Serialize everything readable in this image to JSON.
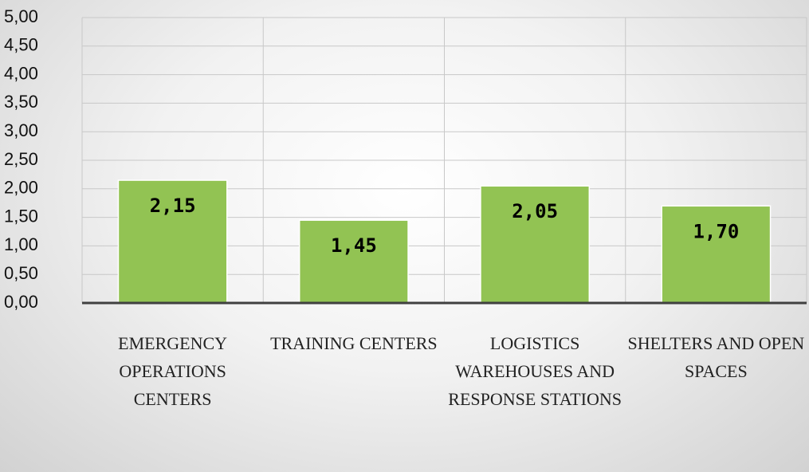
{
  "chart_data": {
    "type": "bar",
    "categories": [
      "EMERGENCY OPERATIONS CENTERS",
      "TRAINING CENTERS",
      "LOGISTICS WAREHOUSES AND RESPONSE STATIONS",
      "SHELTERS AND OPEN SPACES"
    ],
    "values": [
      2.15,
      1.45,
      2.05,
      1.7
    ],
    "value_labels": [
      "2,15",
      "1,45",
      "2,05",
      "1,70"
    ],
    "color": "#92c353",
    "ylim": [
      0,
      5
    ],
    "yticks": [
      {
        "value": 0,
        "label": "0,00"
      },
      {
        "value": 0.5,
        "label": "0,50"
      },
      {
        "value": 1,
        "label": "1,00"
      },
      {
        "value": 1.5,
        "label": "1,50"
      },
      {
        "value": 2,
        "label": "2,00"
      },
      {
        "value": 2.5,
        "label": "2,50"
      },
      {
        "value": 3,
        "label": "3,00"
      },
      {
        "value": 3.5,
        "label": "3,50"
      },
      {
        "value": 4,
        "label": "4,00"
      },
      {
        "value": 4.5,
        "label": "4,50"
      },
      {
        "value": 5,
        "label": "5,00"
      }
    ],
    "grid": true
  }
}
